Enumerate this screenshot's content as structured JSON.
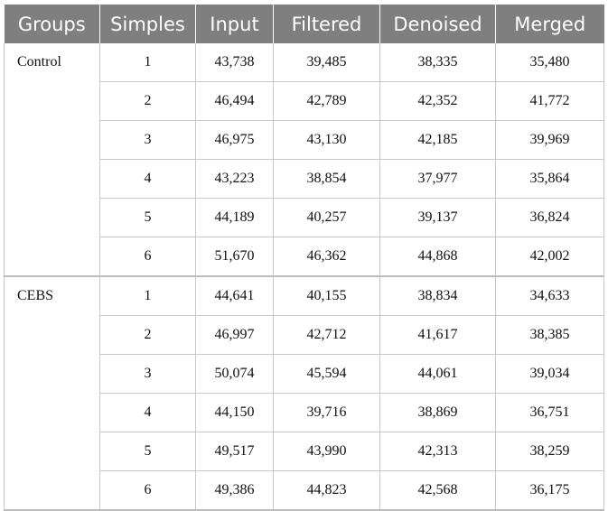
{
  "table": {
    "headers": [
      "Groups",
      "Simples",
      "Input",
      "Filtered",
      "Denoised",
      "Merged"
    ],
    "groups": [
      {
        "name": "Control",
        "rows": [
          [
            "1",
            "43,738",
            "39,485",
            "38,335",
            "35,480"
          ],
          [
            "2",
            "46,494",
            "42,789",
            "42,352",
            "41,772"
          ],
          [
            "3",
            "46,975",
            "43,130",
            "42,185",
            "39,969"
          ],
          [
            "4",
            "43,223",
            "38,854",
            "37,977",
            "35,864"
          ],
          [
            "5",
            "44,189",
            "40,257",
            "39,137",
            "36,824"
          ],
          [
            "6",
            "51,670",
            "46,362",
            "44,868",
            "42,002"
          ]
        ]
      },
      {
        "name": "CEBS",
        "rows": [
          [
            "1",
            "44,641",
            "40,155",
            "38,834",
            "34,633"
          ],
          [
            "2",
            "46,997",
            "42,712",
            "41,617",
            "38,385"
          ],
          [
            "3",
            "50,074",
            "45,594",
            "44,061",
            "39,034"
          ],
          [
            "4",
            "44,150",
            "39,716",
            "38,869",
            "36,751"
          ],
          [
            "5",
            "49,517",
            "43,990",
            "42,313",
            "38,259"
          ],
          [
            "6",
            "49,386",
            "44,823",
            "42,568",
            "36,175"
          ]
        ]
      }
    ]
  }
}
